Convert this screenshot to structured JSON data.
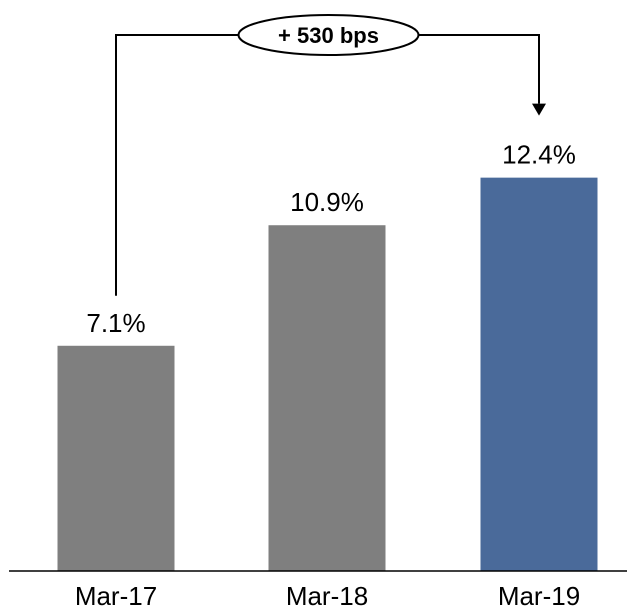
{
  "chart_data": {
    "type": "bar",
    "categories": [
      "Mar-17",
      "Mar-18",
      "Mar-19"
    ],
    "values": [
      7.1,
      10.9,
      12.4
    ],
    "data_labels": [
      "7.1%",
      "10.9%",
      "12.4%"
    ],
    "ylim": [
      0,
      18
    ],
    "grid": false,
    "legend": "none",
    "colors": [
      "#7f7f7f",
      "#7f7f7f",
      "#4a6a9a"
    ],
    "annotation": {
      "text": "+ 530 bps",
      "from": "Mar-17",
      "to": "Mar-19"
    }
  }
}
